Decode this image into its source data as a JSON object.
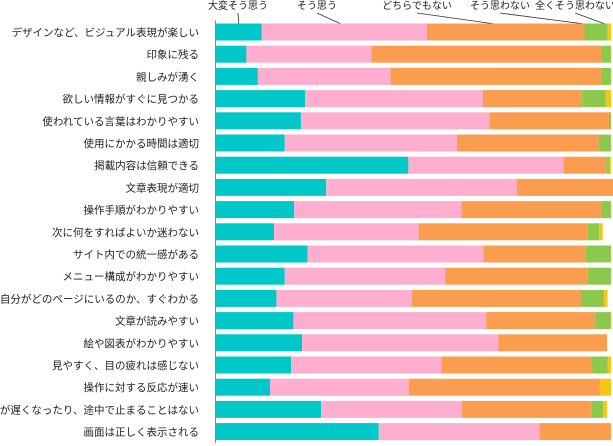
{
  "chart_data": {
    "type": "bar",
    "orientation": "horizontal",
    "stacked": true,
    "unit": "percent",
    "xlim": [
      0,
      100
    ],
    "grid": false,
    "legend_placement": "top",
    "categories": [
      "デザインなど、ビジュアル表現が楽しい",
      "印象に残る",
      "親しみが湧く",
      "欲しい情報がすぐに見つかる",
      "使われている言葉はわかりやすい",
      "使用にかかる時間は適切",
      "掲載内容は信頼できる",
      "文章表現が適切",
      "操作手順がわかりやすい",
      "次に何をすればよいか迷わない",
      "サイト内での統一感がある",
      "メニュー構成がわかりやすい",
      "自分がどのページにいるのか、すぐわかる",
      "文章が読みやすい",
      "絵や図表がわかりやすい",
      "見やすく、目の疲れは感じない",
      "操作に対する反応が速い",
      "表示が遅くなったり、途中で止まることはない",
      "画面は正しく表示される"
    ],
    "series": [
      {
        "name": "大変そう思う",
        "color": "#00c8c8",
        "values": [
          11.6,
          7.7,
          10.6,
          22.6,
          21.5,
          17.4,
          48.7,
          27.9,
          19.8,
          14.7,
          23.2,
          17.4,
          15.3,
          19.6,
          21.8,
          19.0,
          13.7,
          26.6,
          41.2
        ]
      },
      {
        "name": "そう思う",
        "color": "#ffaed0",
        "values": [
          41.8,
          31.6,
          33.6,
          45.0,
          47.7,
          43.6,
          39.3,
          48.3,
          42.3,
          36.6,
          44.5,
          40.6,
          34.3,
          48.8,
          49.7,
          38.0,
          35.1,
          35.6,
          40.8
        ]
      },
      {
        "name": "どちらでもない",
        "color": "#fb9d4f",
        "values": [
          39.9,
          58.3,
          53.4,
          25.1,
          30.3,
          35.9,
          10.8,
          27.4,
          35.4,
          42.7,
          25.9,
          36.0,
          42.8,
          27.5,
          27.5,
          38.2,
          48.4,
          32.8,
          18.0
        ]
      },
      {
        "name": "そう思わない",
        "color": "#8cc84b",
        "values": [
          5.8,
          2.4,
          2.4,
          6.0,
          0.5,
          3.1,
          0.8,
          0.0,
          2.5,
          3.0,
          6.4,
          6.0,
          5.8,
          4.1,
          0.0,
          4.0,
          0.0,
          3.0,
          0.0
        ]
      },
      {
        "name": "全くそう思わない",
        "color": "#f5c518",
        "values": [
          0.9,
          0.0,
          0.0,
          1.3,
          0.0,
          0.0,
          0.4,
          0.4,
          0.0,
          0.9,
          0.0,
          0.0,
          0.9,
          0.0,
          0.0,
          0.8,
          2.8,
          1.0,
          0.0
        ]
      }
    ]
  }
}
